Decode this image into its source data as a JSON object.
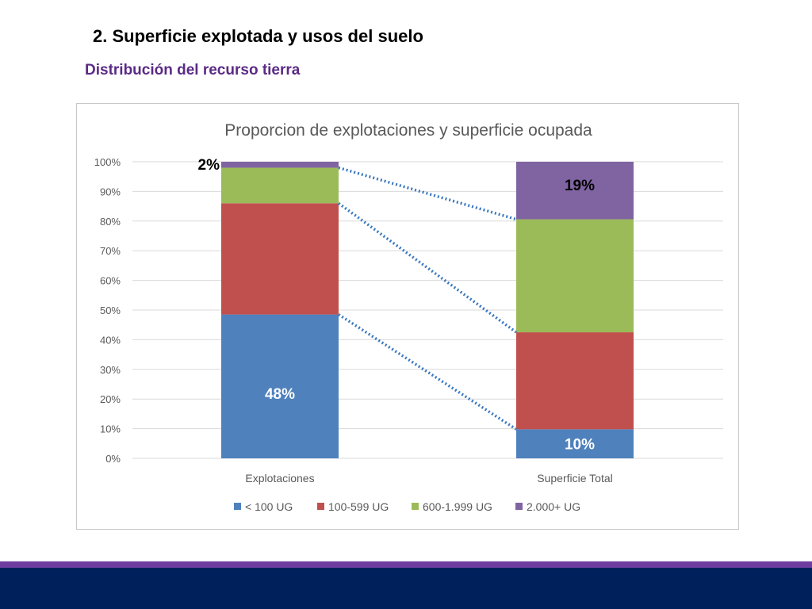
{
  "slide": {
    "title": "2. Superficie explotada y usos del suelo",
    "subtitle": "Distribución del recurso tierra"
  },
  "colors": {
    "series": [
      "#4f81bd",
      "#c0504d",
      "#9bbb59",
      "#8064a2"
    ],
    "connector": "#3b78bf",
    "subtitle": "#5b2a86",
    "footer": "#00205b",
    "footer_accent": "#6f3da0"
  },
  "chart_data": {
    "type": "bar",
    "stacked": true,
    "percent": true,
    "title": "Proporcion de explotaciones y superficie ocupada",
    "categories": [
      "Explotaciones",
      "Superficie Total"
    ],
    "series": [
      {
        "name": "< 100 UG",
        "values": [
          48.5,
          9.8
        ]
      },
      {
        "name": "100-599 UG",
        "values": [
          37.5,
          32.7
        ]
      },
      {
        "name": "600-1.999 UG",
        "values": [
          12,
          38.1
        ]
      },
      {
        "name": "2.000+ UG",
        "values": [
          2,
          19.4
        ]
      }
    ],
    "data_labels": [
      {
        "category": 0,
        "series": 0,
        "text": "48%"
      },
      {
        "category": 0,
        "series": 3,
        "text": "2%"
      },
      {
        "category": 1,
        "series": 0,
        "text": "10%"
      },
      {
        "category": 1,
        "series": 3,
        "text": "19%"
      }
    ],
    "ylim": [
      0,
      100
    ],
    "yticks": [
      "0%",
      "10%",
      "20%",
      "30%",
      "40%",
      "50%",
      "60%",
      "70%",
      "80%",
      "90%",
      "100%"
    ],
    "grid": true,
    "legend_position": "bottom",
    "connectors": "dotted lines joining the cumulative boundaries of the two bars"
  }
}
